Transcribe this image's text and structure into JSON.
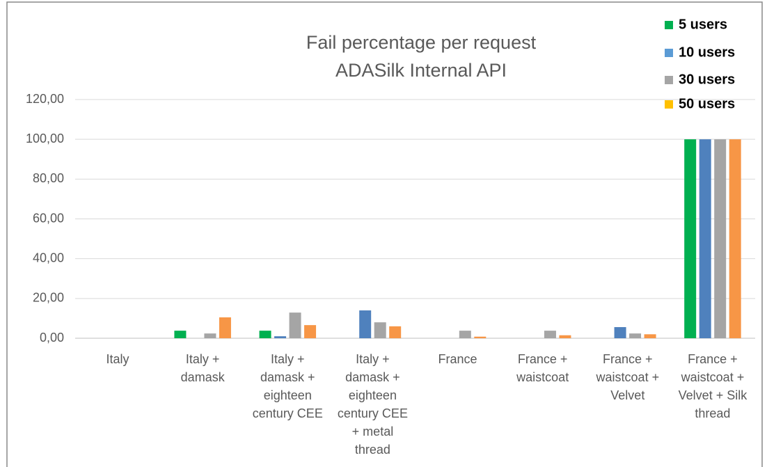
{
  "chart_data": {
    "type": "bar",
    "title": "Fail percentage per request",
    "subtitle": "ADASilk Internal API",
    "categories": [
      "Italy",
      "Italy + damask",
      "Italy + damask + eighteen century CEE",
      "Italy + damask + eighteen century CEE + metal thread",
      "France",
      "France + waistcoat",
      "France + waistcoat + Velvet",
      "France + waistcoat + Velvet + Silk thread"
    ],
    "series": [
      {
        "name": "5 users",
        "color": "#00b050",
        "legend_color": "#00b050",
        "values": [
          0,
          3.8,
          3.8,
          0,
          0,
          0,
          0,
          100
        ]
      },
      {
        "name": "10 users",
        "color": "#4f81bd",
        "legend_color": "#5b9bd5",
        "values": [
          0,
          0,
          1,
          14,
          0,
          0,
          5.6,
          100
        ]
      },
      {
        "name": "30 users",
        "color": "#a5a5a5",
        "legend_color": "#a5a5a5",
        "values": [
          0,
          2.4,
          12.9,
          8,
          3.8,
          3.8,
          2.4,
          100
        ]
      },
      {
        "name": "50 users",
        "color": "#f79646",
        "legend_color": "#ffc000",
        "values": [
          0,
          10.5,
          6.6,
          6,
          0.8,
          1.5,
          2,
          100
        ]
      }
    ],
    "ylim": [
      0,
      120
    ],
    "yticks": [
      {
        "value": 0,
        "label": "0,00"
      },
      {
        "value": 20,
        "label": "20,00"
      },
      {
        "value": 40,
        "label": "40,00"
      },
      {
        "value": 60,
        "label": "60,00"
      },
      {
        "value": 80,
        "label": "80,00"
      },
      {
        "value": 100,
        "label": "100,00"
      },
      {
        "value": 120,
        "label": "120,00"
      }
    ],
    "grid": true,
    "legend": "top-right"
  }
}
